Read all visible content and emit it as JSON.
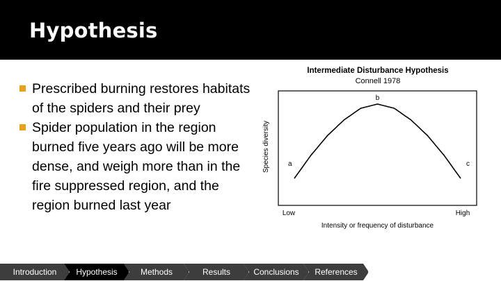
{
  "slide": {
    "title": "Hypothesis",
    "bullets": [
      "Prescribed burning restores habitats of the spiders and their prey",
      "Spider population in the region burned five years ago will be more dense, and weigh more than in the fire suppressed region, and the region burned last year"
    ]
  },
  "figure": {
    "title": "Intermediate Disturbance Hypothesis",
    "subtitle": "Connell 1978"
  },
  "chart_data": {
    "type": "line",
    "title": "Intermediate Disturbance Hypothesis",
    "subtitle": "Connell 1978",
    "xlabel": "Intensity or frequency of disturbance",
    "ylabel": "Species diversity",
    "x_tick_labels": [
      "Low",
      "High"
    ],
    "annotations": [
      "a",
      "b",
      "c"
    ],
    "grid": false,
    "series": [
      {
        "x": [
          0,
          0.1,
          0.2,
          0.3,
          0.4,
          0.5,
          0.6,
          0.7,
          0.8,
          0.9,
          1.0
        ],
        "values": [
          0.1,
          0.38,
          0.62,
          0.81,
          0.95,
          1.0,
          0.95,
          0.81,
          0.62,
          0.38,
          0.1
        ]
      }
    ]
  },
  "nav": {
    "items": [
      "Introduction",
      "Hypothesis",
      "Methods",
      "Results",
      "Conclusions",
      "References"
    ],
    "active_index": 1
  },
  "colors": {
    "title_bar": "#000000",
    "bullet_marker": "#e8a11a",
    "nav_inactive": "#3d3d3d",
    "nav_active": "#000000"
  }
}
